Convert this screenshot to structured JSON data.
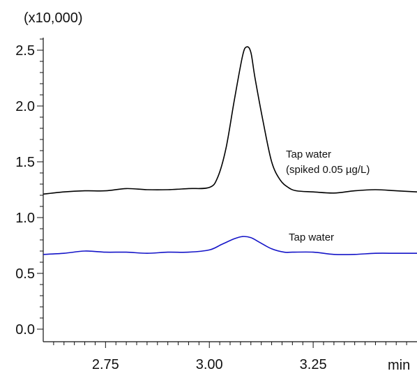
{
  "chart_data": {
    "type": "line",
    "y_multiplier_label": "(x10,000)",
    "xlabel": "min",
    "xlim": [
      2.6,
      3.5
    ],
    "ylim": [
      -0.05,
      2.65
    ],
    "x_ticks": [
      2.75,
      3.0,
      3.25
    ],
    "x_tick_labels": [
      "2.75",
      "3.00",
      "3.25"
    ],
    "y_ticks": [
      0.0,
      0.5,
      1.0,
      1.5,
      2.0,
      2.5
    ],
    "y_tick_labels": [
      "0.0",
      "0.5",
      "1.0",
      "1.5",
      "2.0",
      "2.5"
    ],
    "series": [
      {
        "name": "Tap water (spiked 0.05 µg/L)",
        "color": "#000000",
        "x": [
          2.6,
          2.65,
          2.7,
          2.75,
          2.8,
          2.85,
          2.9,
          2.95,
          3.0,
          3.02,
          3.04,
          3.06,
          3.08,
          3.09,
          3.1,
          3.11,
          3.13,
          3.15,
          3.17,
          3.19,
          3.21,
          3.25,
          3.3,
          3.35,
          3.4,
          3.45,
          3.5
        ],
        "y": [
          1.21,
          1.23,
          1.24,
          1.24,
          1.26,
          1.25,
          1.25,
          1.26,
          1.27,
          1.36,
          1.62,
          2.05,
          2.45,
          2.53,
          2.48,
          2.25,
          1.85,
          1.5,
          1.34,
          1.27,
          1.24,
          1.23,
          1.22,
          1.24,
          1.25,
          1.24,
          1.23
        ]
      },
      {
        "name": "Tap water",
        "color": "#1414c8",
        "x": [
          2.6,
          2.65,
          2.7,
          2.75,
          2.8,
          2.85,
          2.9,
          2.95,
          3.0,
          3.03,
          3.06,
          3.08,
          3.1,
          3.12,
          3.15,
          3.18,
          3.2,
          3.25,
          3.3,
          3.35,
          3.4,
          3.45,
          3.5
        ],
        "y": [
          0.67,
          0.68,
          0.7,
          0.69,
          0.69,
          0.68,
          0.69,
          0.69,
          0.71,
          0.76,
          0.81,
          0.83,
          0.82,
          0.78,
          0.72,
          0.69,
          0.69,
          0.69,
          0.67,
          0.67,
          0.68,
          0.68,
          0.68
        ]
      }
    ],
    "annotations": [
      {
        "line1": "Tap water",
        "line2": "(spiked  0.05 µg/L)"
      },
      {
        "line1": "Tap water"
      }
    ]
  }
}
